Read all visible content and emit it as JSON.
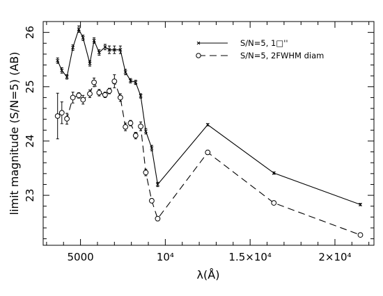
{
  "chart_data": {
    "type": "line",
    "xlabel": "λ(Å)",
    "ylabel": "limit magnitude (S/N=5) (AB)",
    "xlim": [
      2800,
      22300
    ],
    "ylim": [
      22.08,
      26.2
    ],
    "grid": false,
    "legend_position": "top-right",
    "x_ticks": [
      {
        "value": 5000,
        "label": "5000"
      },
      {
        "value": 10000,
        "label": "10⁴"
      },
      {
        "value": 15000,
        "label": "1.5×10⁴"
      },
      {
        "value": 20000,
        "label": "2×10⁴"
      }
    ],
    "y_ticks": [
      {
        "value": 23,
        "label": "23"
      },
      {
        "value": 24,
        "label": "24"
      },
      {
        "value": 25,
        "label": "25"
      },
      {
        "value": 26,
        "label": "26"
      }
    ],
    "series": [
      {
        "name": "S/N=5, 1□''",
        "line_style": "solid",
        "marker": "x",
        "color": "#000000",
        "x": [
          3650,
          3900,
          4200,
          4550,
          4900,
          5150,
          5550,
          5800,
          6100,
          6450,
          6700,
          7000,
          7350,
          7650,
          7950,
          8250,
          8550,
          8850,
          9200,
          9550,
          12500,
          16400,
          21500
        ],
        "y": [
          25.48,
          25.3,
          25.18,
          25.72,
          26.06,
          25.9,
          25.43,
          25.85,
          25.63,
          25.73,
          25.68,
          25.68,
          25.68,
          25.27,
          25.11,
          25.08,
          24.83,
          24.18,
          23.87,
          23.2,
          24.3,
          23.41,
          22.83
        ],
        "yerr": [
          0.05,
          0.05,
          0.04,
          0.05,
          0.06,
          0.05,
          0.05,
          0.05,
          0.05,
          0.05,
          0.07,
          0.07,
          0.07,
          0.05,
          0.04,
          0.04,
          0.04,
          0.05,
          0.05,
          0.04,
          0.02,
          0.02,
          0.02
        ]
      },
      {
        "name": "S/N=5, 2FWHM diam",
        "line_style": "dashed",
        "marker": "circle",
        "color": "#000000",
        "x": [
          3650,
          3900,
          4200,
          4550,
          4900,
          5150,
          5550,
          5800,
          6100,
          6450,
          6700,
          7000,
          7350,
          7650,
          7950,
          8250,
          8550,
          8850,
          9200,
          9550,
          12500,
          16400,
          21500
        ],
        "y": [
          24.46,
          24.52,
          24.41,
          24.8,
          24.84,
          24.76,
          24.87,
          25.08,
          24.89,
          24.85,
          24.92,
          25.1,
          24.8,
          24.26,
          24.33,
          24.1,
          24.27,
          23.42,
          22.9,
          22.57,
          23.79,
          22.86,
          22.27
        ],
        "yerr": [
          0.42,
          0.2,
          0.1,
          0.1,
          0.05,
          0.08,
          0.07,
          0.08,
          0.06,
          0.05,
          0.05,
          0.12,
          0.07,
          0.07,
          0.05,
          0.06,
          0.08,
          0.06,
          0.04,
          0.04,
          0.04,
          0.03,
          0.03
        ]
      }
    ]
  }
}
